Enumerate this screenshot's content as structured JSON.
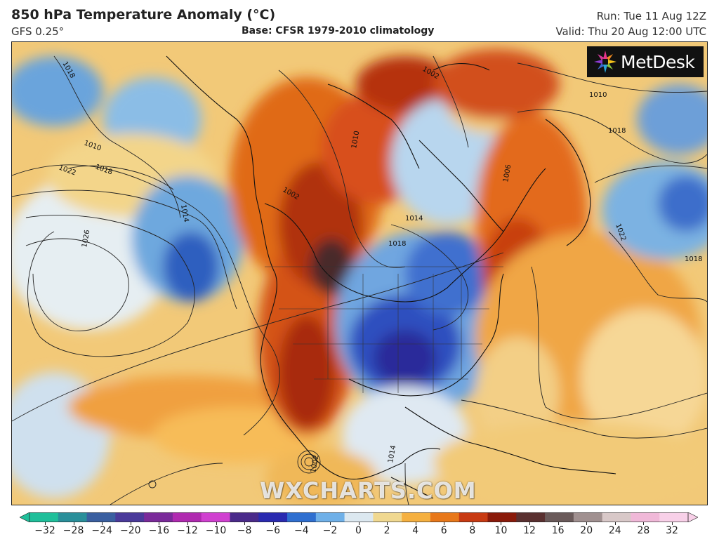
{
  "header": {
    "title": "850 hPa Temperature Anomaly (°C)",
    "model": "GFS 0.25°",
    "base": "Base: CFSR 1979-2010 climatology",
    "run": "Run: Tue 11 Aug 12Z",
    "valid": "Valid: Thu 20 Aug 12:00 UTC"
  },
  "branding": {
    "logo_text": "MetDesk",
    "watermark": "WXCHARTS.COM"
  },
  "isobar_labels": [
    "1018",
    "1010",
    "1018",
    "1022",
    "1026",
    "1014",
    "1002",
    "1010",
    "1018",
    "1022",
    "1018",
    "1014",
    "1018",
    "1006",
    "1002",
    "1010",
    "1014",
    "1002"
  ],
  "colorbar": {
    "labels": [
      "−32",
      "−28",
      "−24",
      "−20",
      "−16",
      "−12",
      "−10",
      "−8",
      "−6",
      "−4",
      "−2",
      "0",
      "2",
      "4",
      "6",
      "8",
      "10",
      "12",
      "16",
      "20",
      "24",
      "28",
      "32"
    ],
    "colors": [
      "#1fbf9a",
      "#2a8f9a",
      "#3a5fa0",
      "#4a3a9a",
      "#7a2a9a",
      "#b02ab0",
      "#d040d0",
      "#4a2a8a",
      "#2a2ab0",
      "#2f6fd0",
      "#6fb0e8",
      "#dce8f0",
      "#f0d890",
      "#f5b040",
      "#e8781a",
      "#c83a12",
      "#8a1a0a",
      "#5a3030",
      "#6a5a5a",
      "#a09090",
      "#d8c8c8",
      "#f0b8d8",
      "#f8d0e8"
    ]
  }
}
